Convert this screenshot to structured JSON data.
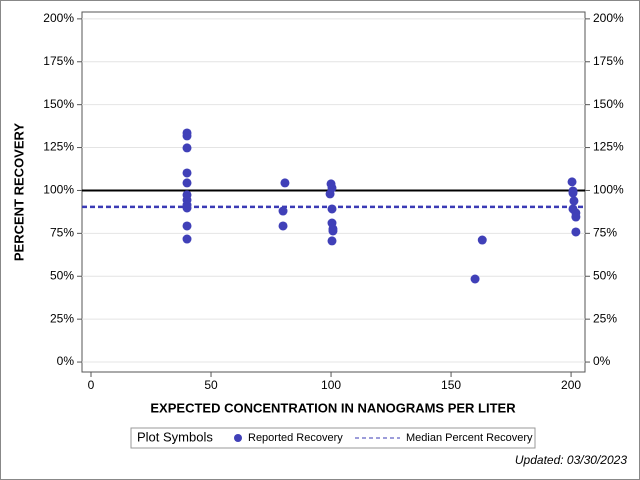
{
  "chart_data": {
    "type": "scatter",
    "x_label": "EXPECTED CONCENTRATION IN NANOGRAMS PER LITER",
    "y_label": "PERCENT RECOVERY",
    "xlim": [
      -3.75,
      205.8
    ],
    "ylim": [
      -5.8,
      204
    ],
    "xticks": [
      0,
      50,
      100,
      150,
      200
    ],
    "yticks": [
      {
        "value": 0,
        "label": "0%"
      },
      {
        "value": 25,
        "label": "25%"
      },
      {
        "value": 50,
        "label": "50%"
      },
      {
        "value": 75,
        "label": "75%"
      },
      {
        "value": 100,
        "label": "100%"
      },
      {
        "value": 125,
        "label": "125%"
      },
      {
        "value": 150,
        "label": "150%"
      },
      {
        "value": 175,
        "label": "175%"
      },
      {
        "value": 200,
        "label": "200%"
      }
    ],
    "grid": true,
    "series": [
      {
        "name": "Reported Recovery",
        "color": "#4040b8",
        "x": [
          40,
          40,
          40,
          40,
          40,
          40,
          40,
          40,
          40,
          40,
          40,
          80.8,
          80,
          80,
          100,
          100.4,
          99.6,
          100.4,
          100.4,
          100.8,
          100.8,
          100.4,
          160,
          163,
          200.4,
          200.8,
          200.8,
          201.2,
          200.8,
          202,
          202,
          202
        ],
        "values": [
          133.5,
          131.8,
          124.8,
          110.2,
          104.4,
          97.4,
          94.5,
          91.5,
          89.8,
          79.3,
          71.7,
          104.4,
          88,
          79.3,
          103.8,
          101.5,
          98,
          89.2,
          81,
          77.6,
          76.4,
          70.6,
          48.4,
          71.1,
          105,
          99.7,
          98.5,
          93.9,
          89.2,
          86.9,
          84.5,
          75.8
        ]
      }
    ],
    "reference_line": 100,
    "median_line": {
      "name": "Median Percent Recovery",
      "value": 90.4,
      "color": "#3b3bb5"
    },
    "legend_title": "Plot Symbols",
    "footer": "Updated: 03/30/2023"
  }
}
